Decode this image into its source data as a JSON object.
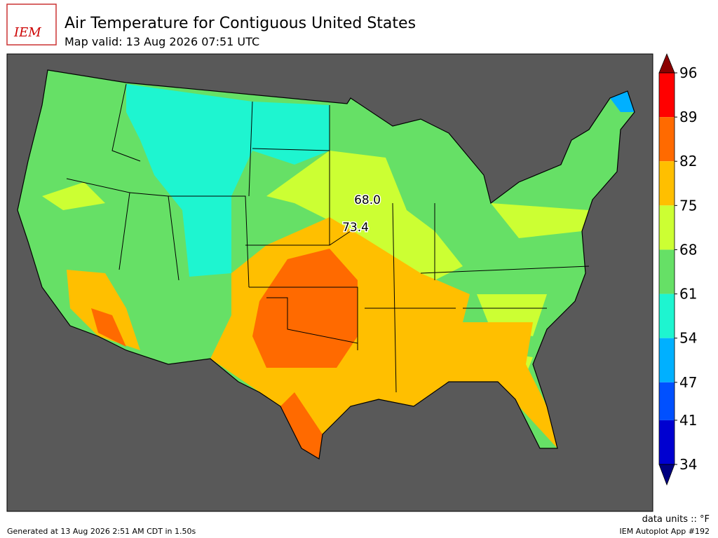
{
  "header": {
    "logo": "IEM",
    "title": "Air Temperature for Contiguous United States",
    "subtitle": "Map valid: 13 Aug 2026 07:51 UTC"
  },
  "colorbar": {
    "ticks": [
      96,
      89,
      82,
      75,
      68,
      61,
      54,
      47,
      41,
      34
    ],
    "colors": [
      "#8b0000",
      "#ff0000",
      "#ff6a00",
      "#ffbf00",
      "#ccff33",
      "#66e066",
      "#1ef5d0",
      "#00b0ff",
      "#0050ff",
      "#0000d0",
      "#000080"
    ],
    "units": "data units :: °F"
  },
  "stations": [
    {
      "value": 68,
      "label": "68.0"
    },
    {
      "value": 73.4,
      "label": "73.4"
    }
  ],
  "footer": {
    "generated": "Generated at 13 Aug 2026 2:51 AM CDT in 1.50s",
    "app": "IEM Autoplot App #192"
  }
}
